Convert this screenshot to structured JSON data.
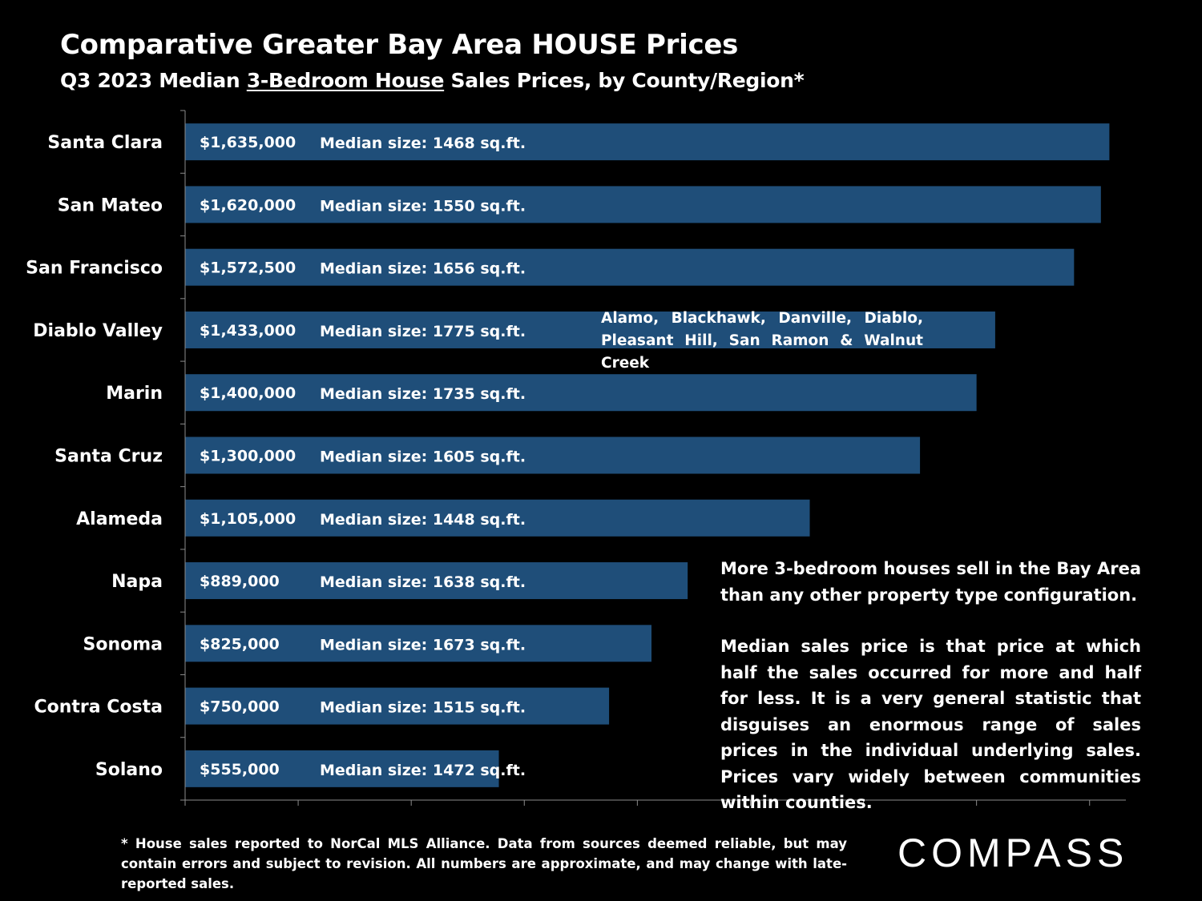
{
  "title": "Comparative Greater Bay Area HOUSE Prices",
  "subtitle": {
    "prefix": "Q3 2023 Median ",
    "underlined": "3-Bedroom House",
    "suffix": " Sales Prices, by County/Region*"
  },
  "annotation": "Alamo, Blackhawk, Danville, Diablo, Pleasant Hill, San Ramon & Walnut Creek",
  "note": {
    "p1": "More 3-bedroom houses sell in the Bay Area than any other property type configuration.",
    "p2": "Median sales price is that price at which half the sales occurred for more and half for less. It is a very general statistic that disguises an enormous range of sales prices in the individual underlying sales. Prices vary widely between communities within counties."
  },
  "footnote": "* House sales reported to NorCal MLS Alliance. Data from sources deemed reliable, but may contain errors and subject to revision. All numbers are approximate, and may change with late-reported sales.",
  "logo": {
    "text": "COMPASS"
  },
  "colors": {
    "background": "#000000",
    "bar": "#1f4e79",
    "text": "#ffffff",
    "axis": "#8c8c8c"
  },
  "chart_data": {
    "type": "bar",
    "orientation": "horizontal",
    "categories": [
      "Santa Clara",
      "San Mateo",
      "San Francisco",
      "Diablo Valley",
      "Marin",
      "Santa Cruz",
      "Alameda",
      "Napa",
      "Sonoma",
      "Contra Costa",
      "Solano"
    ],
    "values": [
      1635000,
      1620000,
      1572500,
      1433000,
      1400000,
      1300000,
      1105000,
      889000,
      825000,
      750000,
      555000
    ],
    "value_labels": [
      "$1,635,000",
      "$1,620,000",
      "$1,572,500",
      "$1,433,000",
      "$1,400,000",
      "$1,300,000",
      "$1,105,000",
      "$889,000",
      "$825,000",
      "$750,000",
      "$555,000"
    ],
    "size_labels": [
      "Median size: 1468 sq.ft.",
      "Median size: 1550 sq.ft.",
      "Median size: 1656 sq.ft.",
      "Median size: 1775 sq.ft.",
      "Median size: 1735 sq.ft.",
      "Median size: 1605 sq.ft.",
      "Median size: 1448 sq.ft.",
      "Median size: 1638 sq.ft.",
      "Median size: 1673 sq.ft.",
      "Median size: 1515 sq.ft.",
      "Median size: 1472 sq.ft."
    ],
    "xlim": [
      0,
      1650000
    ],
    "x_tick_step": 200000,
    "x_tick_labels_shown": false,
    "grid": false,
    "legend": "none"
  }
}
